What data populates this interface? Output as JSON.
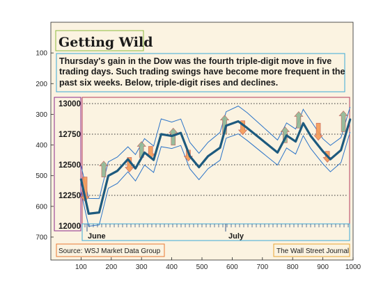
{
  "chart_data": {
    "type": "line",
    "title": "Getting Wild",
    "subtitle": [
      "Thursday's gain in the Dow was the fourth triple-digit move in five",
      "trading days. Such trading swings have become more frequent in the",
      "past six weeks. Below, triple-digit rises and declines."
    ],
    "figure_x_ticks": [
      "100",
      "200",
      "300",
      "400",
      "500",
      "600",
      "700",
      "800",
      "900",
      "1000"
    ],
    "figure_y_ticks": [
      "100",
      "200",
      "300",
      "400",
      "500",
      "600",
      "700"
    ],
    "y_labels": [
      "13000",
      "12750",
      "12500",
      "12250",
      "12000"
    ],
    "y_gridlines": [
      13000,
      12750,
      12500,
      12250
    ],
    "ylim": [
      12000,
      13000
    ],
    "months": [
      "June",
      "July"
    ],
    "source": "Source: WSJ Market Data Group",
    "credit": "The Wall Street Journal",
    "series": [
      {
        "values": [
          [
            100,
            12380
          ],
          [
            125,
            12100
          ],
          [
            160,
            12110
          ],
          [
            190,
            12410
          ],
          [
            220,
            12450
          ],
          [
            255,
            12545
          ],
          [
            280,
            12470
          ],
          [
            310,
            12600
          ],
          [
            340,
            12540
          ],
          [
            365,
            12750
          ],
          [
            400,
            12735
          ],
          [
            430,
            12760
          ],
          [
            460,
            12570
          ],
          [
            490,
            12480
          ],
          [
            520,
            12570
          ],
          [
            560,
            12640
          ],
          [
            580,
            12820
          ],
          [
            620,
            12855
          ],
          [
            650,
            12800
          ],
          [
            700,
            12700
          ],
          [
            750,
            12600
          ],
          [
            780,
            12740
          ],
          [
            810,
            12690
          ],
          [
            835,
            12840
          ],
          [
            860,
            12735
          ],
          [
            900,
            12610
          ],
          [
            925,
            12545
          ],
          [
            960,
            12620
          ],
          [
            990,
            12870
          ]
        ]
      }
    ],
    "rises": [
      [
        175,
        12400,
        12530
      ],
      [
        300,
        12560,
        12690
      ],
      [
        405,
        12660,
        12800
      ],
      [
        575,
        12750,
        12905
      ],
      [
        775,
        12680,
        12810
      ],
      [
        820,
        12800,
        12935
      ],
      [
        968,
        12770,
        12940
      ]
    ],
    "declines": [
      [
        113,
        12400,
        12200
      ],
      [
        260,
        12560,
        12440
      ],
      [
        330,
        12650,
        12550
      ],
      [
        455,
        12620,
        12530
      ],
      [
        635,
        12860,
        12745
      ],
      [
        885,
        12840,
        12700
      ],
      [
        915,
        12610,
        12520
      ]
    ]
  },
  "colors": {
    "plot_bg": "#fbf3e1",
    "main_line": "#1d5a7e",
    "band": "#2a73c8",
    "rise": "#8fb895",
    "decline": "#f49a55",
    "gridline": "#333333"
  }
}
